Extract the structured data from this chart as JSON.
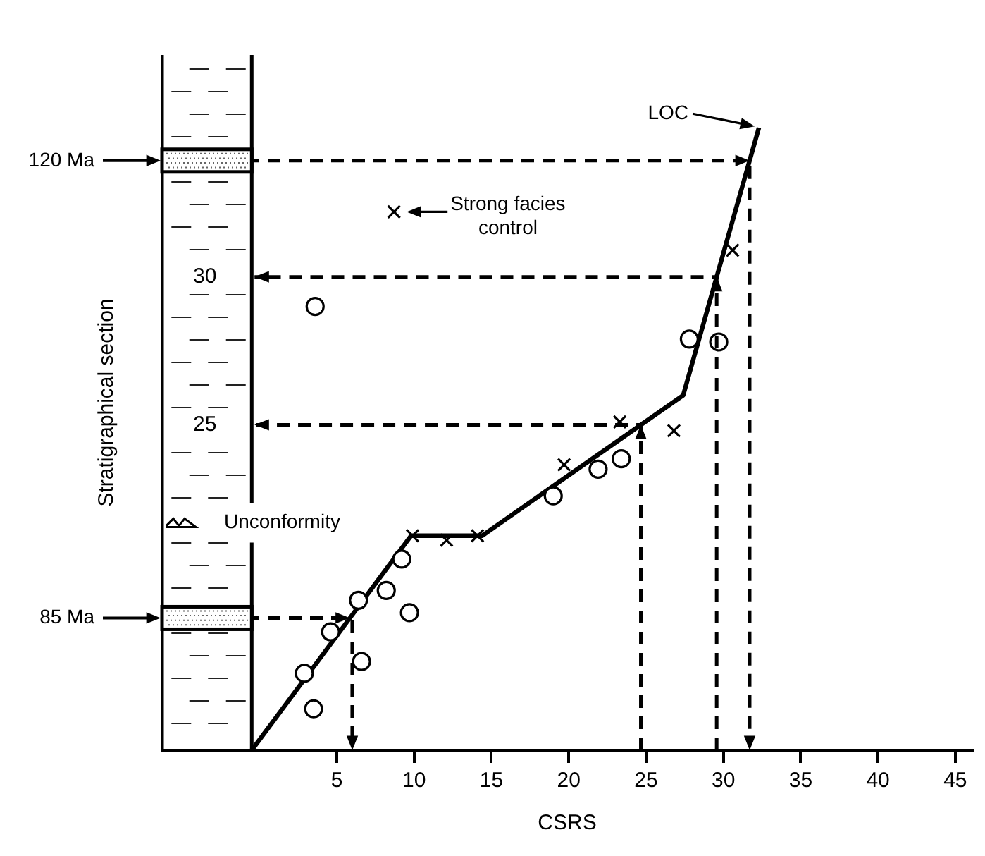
{
  "chart_data": {
    "type": "scatter",
    "xlabel": "CSRS",
    "ylabel": "Stratigraphical section",
    "xlim": [
      -6.3,
      46.1
    ],
    "ylim": [
      14,
      37.5
    ],
    "xticks": [
      5,
      10,
      15,
      20,
      25,
      30,
      35,
      40,
      45
    ],
    "yticks": [
      25,
      30
    ],
    "grid": false,
    "legend": false,
    "series": [
      {
        "type": "line",
        "color": "#000000",
        "marker": "none",
        "line_style": "solid",
        "x": [
          -0.5,
          9.8,
          14.4,
          27.4,
          32.3
        ],
        "values": [
          14,
          21.25,
          21.25,
          26.0,
          35.04
        ]
      },
      {
        "type": "scatter",
        "color": "#000000",
        "marker": "cross",
        "x": [
          8.7,
          9.9,
          12.1,
          14.1,
          19.7,
          23.3,
          26.8,
          30.6
        ],
        "values": [
          32.2,
          21.25,
          21.1,
          21.25,
          23.65,
          25.1,
          24.8,
          30.9
        ]
      },
      {
        "type": "scatter",
        "color": "#000000",
        "marker": "circle",
        "x": [
          3.6,
          2.9,
          3.5,
          4.6,
          6.4,
          8.2,
          9.2,
          9.7,
          6.6,
          19.0,
          21.9,
          23.4,
          27.8,
          29.7
        ],
        "values": [
          29.0,
          16.6,
          15.4,
          18.0,
          19.07,
          19.4,
          20.46,
          18.65,
          17.0,
          22.6,
          23.5,
          23.85,
          27.9,
          27.8
        ]
      }
    ],
    "ref_lines": [
      {
        "axis": "y",
        "value": 33.93,
        "label": "120 Ma",
        "line_style": "dashed"
      },
      {
        "axis": "y",
        "value": 18.47,
        "label": "85 Ma",
        "line_style": "dashed"
      },
      {
        "axis": "x",
        "value": 31.7,
        "line_style": "dashed"
      },
      {
        "axis": "x",
        "value": 6.0,
        "line_style": "dashed"
      }
    ],
    "annotations": [
      {
        "text": "LOC",
        "x": 32.3,
        "y": 35.04
      },
      {
        "text": "Strong facies control",
        "x": 8.7,
        "y": 32.2
      },
      "Unconformity"
    ]
  }
}
